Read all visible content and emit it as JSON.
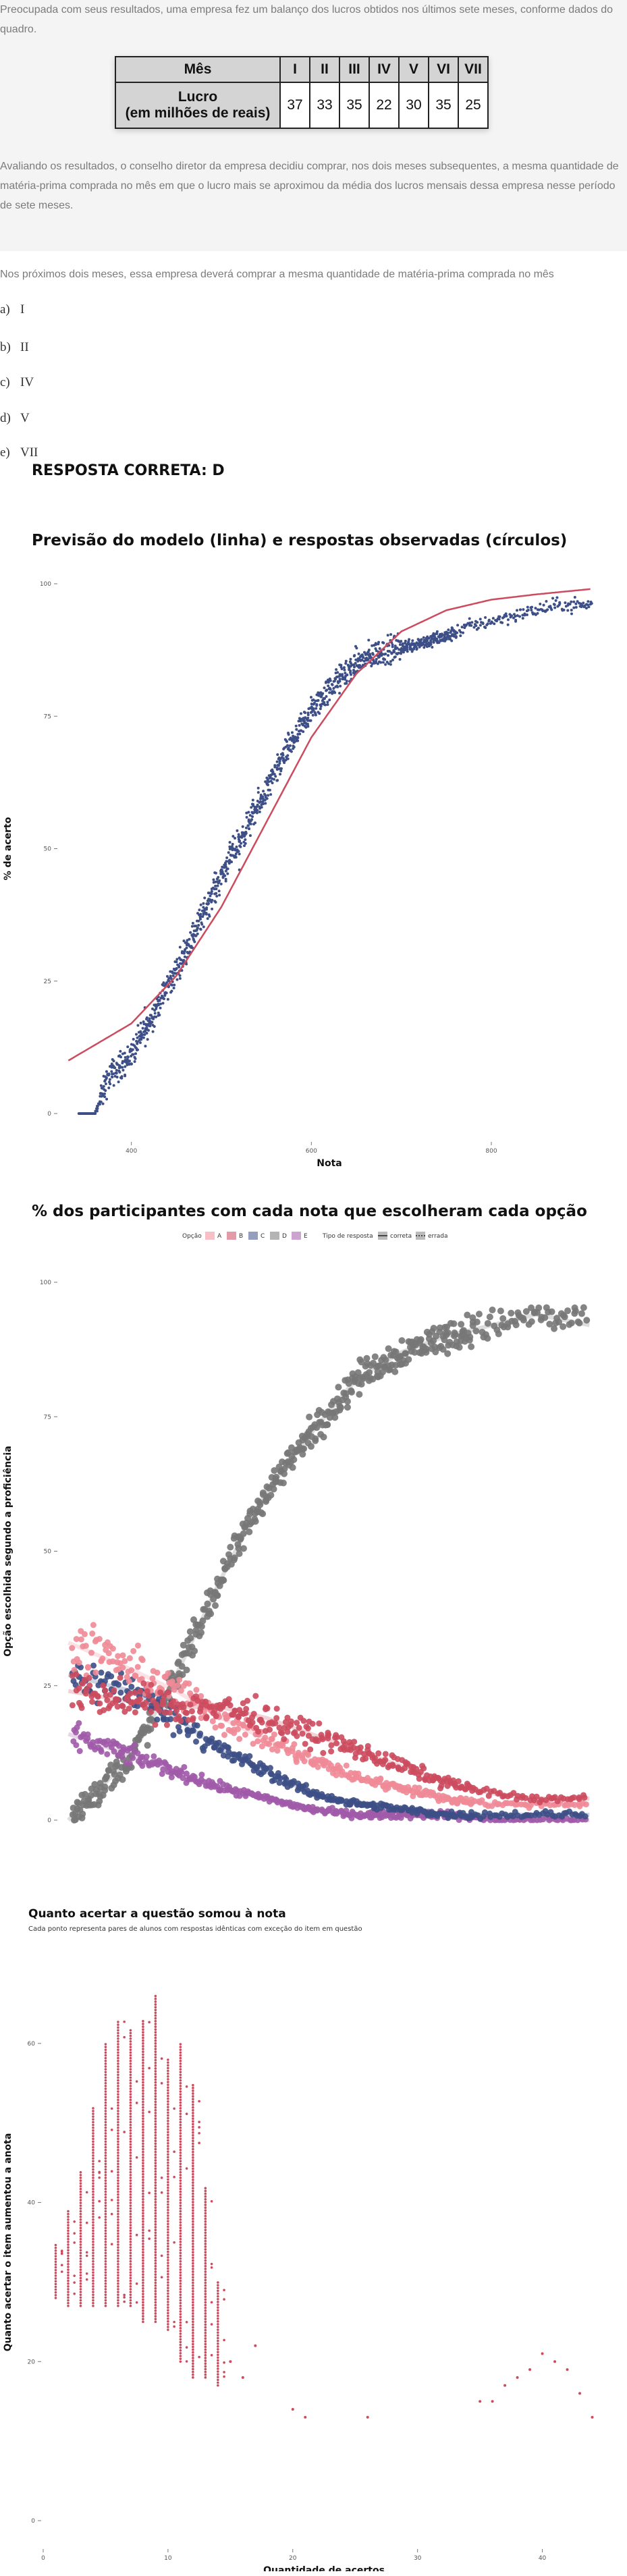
{
  "question": {
    "intro": "Preocupada com seus resultados, uma empresa fez um balanço dos lucros obtidos nos últimos sete meses, conforme dados do quadro.",
    "table": {
      "header_label": "Mês",
      "months": [
        "I",
        "II",
        "III",
        "IV",
        "V",
        "VI",
        "VII"
      ],
      "row_label_line1": "Lucro",
      "row_label_line2": "(em milhões de reais)",
      "values": [
        "37",
        "33",
        "35",
        "22",
        "30",
        "35",
        "25"
      ]
    },
    "context": "Avaliando os resultados, o conselho diretor da empresa decidiu comprar, nos dois meses subsequentes, a mesma quantidade de matéria-prima comprada no mês em que o lucro mais se aproximou da média dos lucros mensais dessa empresa nesse período de sete meses.",
    "prompt": "Nos próximos dois meses, essa empresa deverá comprar a mesma quantidade de matéria-prima comprada no mês",
    "options": [
      {
        "letter": "a)",
        "text": "I"
      },
      {
        "letter": "b)",
        "text": "II"
      },
      {
        "letter": "c)",
        "text": "IV"
      },
      {
        "letter": "d)",
        "text": "V"
      },
      {
        "letter": "e)",
        "text": "VII"
      }
    ],
    "answer": "RESPOSTA CORRETA: D"
  },
  "chart_data": [
    {
      "type": "scatter",
      "title": "Previsão do modelo (linha) e respostas observadas (círculos)",
      "xlabel": "Nota",
      "ylabel": "% de acerto",
      "xlim": [
        320,
        920
      ],
      "ylim": [
        0,
        100
      ],
      "x_ticks": [
        "400",
        "600",
        "800"
      ],
      "y_ticks": [
        "0",
        "25",
        "50",
        "75",
        "100"
      ],
      "colors": {
        "observed": "#3d4f86",
        "model": "#cc4b5e"
      },
      "observed": {
        "x": [
          330,
          360,
          375,
          400,
          425,
          450,
          475,
          500,
          525,
          550,
          575,
          600,
          625,
          650,
          675,
          700,
          725,
          750,
          775,
          800,
          825,
          850,
          875,
          910
        ],
        "y": [
          0,
          0,
          7,
          11,
          19,
          27,
          36,
          45,
          53,
          61,
          69,
          76,
          81,
          85,
          87,
          88,
          89,
          90,
          92,
          93,
          94,
          95,
          96,
          96
        ]
      },
      "model": {
        "x": [
          330,
          360,
          400,
          450,
          500,
          550,
          600,
          650,
          700,
          750,
          800,
          850,
          910
        ],
        "y": [
          10,
          13,
          17,
          26,
          39,
          55,
          71,
          83,
          91,
          95,
          97,
          98,
          99
        ]
      }
    },
    {
      "type": "scatter",
      "title": "% dos participantes com cada nota que escolheram cada opção",
      "xlabel": "Nota",
      "ylabel": "Opção escolhida segundo a proficiência",
      "xlim": [
        320,
        920
      ],
      "ylim": [
        0,
        100
      ],
      "x_ticks": [
        "400",
        "600",
        "800"
      ],
      "y_ticks": [
        "0",
        "25",
        "50",
        "75",
        "100"
      ],
      "legend": {
        "option_title": "Opção",
        "options": [
          "A",
          "B",
          "C",
          "D",
          "E"
        ],
        "type_title": "Tipo de resposta",
        "types": [
          "correta",
          "errada"
        ]
      },
      "colors": {
        "A": "#f08a97",
        "B": "#cc4b5e",
        "C": "#3d4f86",
        "D": "#777777",
        "E": "#a05aa8"
      },
      "series": [
        {
          "name": "A",
          "x": [
            330,
            400,
            450,
            500,
            550,
            600,
            650,
            700,
            750,
            800,
            850,
            910
          ],
          "y": [
            33,
            28,
            24,
            19,
            15,
            11,
            8,
            6,
            4,
            3,
            3,
            3
          ]
        },
        {
          "name": "B",
          "x": [
            330,
            400,
            450,
            500,
            550,
            600,
            650,
            700,
            750,
            800,
            850,
            910
          ],
          "y": [
            24,
            22,
            21,
            21,
            19,
            16,
            13,
            10,
            7,
            5,
            4,
            4
          ]
        },
        {
          "name": "C",
          "x": [
            330,
            400,
            450,
            500,
            550,
            600,
            650,
            700,
            750,
            800,
            850,
            910
          ],
          "y": [
            27,
            24,
            19,
            13,
            9,
            5,
            3,
            2,
            1,
            1,
            1,
            1
          ]
        },
        {
          "name": "D",
          "x": [
            330,
            360,
            400,
            450,
            500,
            550,
            600,
            650,
            700,
            750,
            800,
            850,
            910
          ],
          "y": [
            0,
            5,
            12,
            27,
            45,
            61,
            72,
            82,
            87,
            90,
            92,
            94,
            92
          ]
        },
        {
          "name": "E",
          "x": [
            330,
            400,
            450,
            500,
            550,
            600,
            650,
            700,
            750,
            800,
            850,
            910
          ],
          "y": [
            16,
            12,
            9,
            6,
            4,
            2,
            1,
            1,
            1,
            0,
            0,
            0
          ]
        }
      ]
    },
    {
      "type": "scatter",
      "title": "Quanto acertar a questão somou à nota",
      "subtitle": "Cada ponto representa pares de alunos com respostas idênticas com exceção do item em questão",
      "xlabel": "Quantidade de acertos",
      "ylabel": "Quanto acertar o item aumentou a anota",
      "xlim": [
        0,
        45
      ],
      "ylim": [
        0,
        70
      ],
      "x_ticks": [
        "0",
        "10",
        "20",
        "30",
        "40"
      ],
      "y_ticks": [
        "0",
        "20",
        "40",
        "60"
      ],
      "color": "#cc4b5e",
      "columns": [
        {
          "x": 1,
          "ymin": 28,
          "ymax": 35
        },
        {
          "x": 2,
          "ymin": 27,
          "ymax": 39
        },
        {
          "x": 3,
          "ymin": 27,
          "ymax": 44
        },
        {
          "x": 4,
          "ymin": 27,
          "ymax": 52
        },
        {
          "x": 5,
          "ymin": 27,
          "ymax": 60
        },
        {
          "x": 6,
          "ymin": 27,
          "ymax": 63
        },
        {
          "x": 7,
          "ymin": 27,
          "ymax": 62
        },
        {
          "x": 8,
          "ymin": 25,
          "ymax": 63
        },
        {
          "x": 9,
          "ymin": 25,
          "ymax": 66
        },
        {
          "x": 10,
          "ymin": 24,
          "ymax": 58
        },
        {
          "x": 11,
          "ymin": 20,
          "ymax": 60
        },
        {
          "x": 12,
          "ymin": 18,
          "ymax": 55
        },
        {
          "x": 13,
          "ymin": 18,
          "ymax": 42
        },
        {
          "x": 14,
          "ymin": 17,
          "ymax": 30
        }
      ],
      "points": [
        {
          "x": 15,
          "y": 20
        },
        {
          "x": 16,
          "y": 18
        },
        {
          "x": 17,
          "y": 22
        },
        {
          "x": 20,
          "y": 14
        },
        {
          "x": 21,
          "y": 13
        },
        {
          "x": 26,
          "y": 13
        },
        {
          "x": 35,
          "y": 15
        },
        {
          "x": 36,
          "y": 15
        },
        {
          "x": 37,
          "y": 17
        },
        {
          "x": 38,
          "y": 18
        },
        {
          "x": 39,
          "y": 19
        },
        {
          "x": 40,
          "y": 21
        },
        {
          "x": 41,
          "y": 20
        },
        {
          "x": 42,
          "y": 19
        },
        {
          "x": 43,
          "y": 16
        },
        {
          "x": 44,
          "y": 13
        }
      ]
    }
  ]
}
